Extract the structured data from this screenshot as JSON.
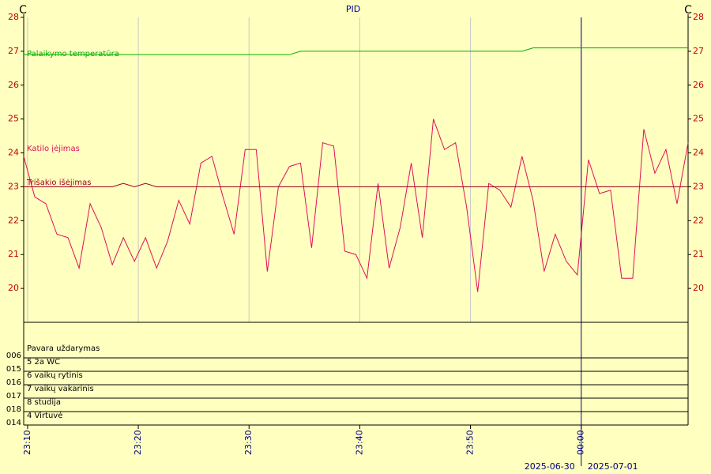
{
  "chart_data": {
    "type": "line",
    "title": "PID",
    "y_label_left": "C",
    "y_label_right": "C",
    "xlim": [
      9.65,
      69.65
    ],
    "xticks": [
      {
        "value": 10,
        "label": "23:10"
      },
      {
        "value": 20,
        "label": "23:20"
      },
      {
        "value": 30,
        "label": "23:30"
      },
      {
        "value": 40,
        "label": "23:40"
      },
      {
        "value": 50,
        "label": "23:50"
      },
      {
        "value": 60,
        "label": "00:00"
      }
    ],
    "ylim": [
      19,
      28
    ],
    "yticks": [
      20,
      21,
      22,
      23,
      24,
      25,
      26,
      27,
      28
    ],
    "grid": true,
    "x": [
      9.65,
      10.65,
      11.65,
      12.65,
      13.65,
      14.65,
      15.65,
      16.65,
      17.65,
      18.65,
      19.65,
      20.65,
      21.65,
      22.65,
      23.65,
      24.65,
      25.65,
      26.65,
      27.65,
      28.65,
      29.65,
      30.65,
      31.65,
      32.65,
      33.65,
      34.65,
      35.65,
      36.65,
      37.65,
      38.65,
      39.65,
      40.65,
      41.65,
      42.65,
      43.65,
      44.65,
      45.65,
      46.65,
      47.65,
      48.65,
      49.65,
      50.65,
      51.65,
      52.65,
      53.65,
      54.65,
      55.65,
      56.65,
      57.65,
      58.65,
      59.65,
      60.65,
      61.65,
      62.65,
      63.65,
      64.65,
      65.65,
      66.65,
      67.65,
      68.65,
      69.65
    ],
    "series": [
      {
        "name": "Palaikymo temperatūra",
        "color": "#00b000",
        "values": [
          26.9,
          26.9,
          26.9,
          26.9,
          26.9,
          26.9,
          26.9,
          26.9,
          26.9,
          26.9,
          26.9,
          26.9,
          26.9,
          26.9,
          26.9,
          26.9,
          26.9,
          26.9,
          26.9,
          26.9,
          26.9,
          26.9,
          26.9,
          26.9,
          26.9,
          27.0,
          27.0,
          27.0,
          27.0,
          27.0,
          27.0,
          27.0,
          27.0,
          27.0,
          27.0,
          27.0,
          27.0,
          27.0,
          27.0,
          27.0,
          27.0,
          27.0,
          27.0,
          27.0,
          27.0,
          27.0,
          27.1,
          27.1,
          27.1,
          27.1,
          27.1,
          27.1,
          27.1,
          27.1,
          27.1,
          27.1,
          27.1,
          27.1,
          27.1,
          27.1,
          27.1
        ]
      },
      {
        "name": "Katilo įėjimas",
        "color": "#e0105a",
        "values": [
          23.9,
          22.7,
          22.5,
          21.6,
          21.5,
          20.6,
          22.5,
          21.8,
          20.7,
          21.5,
          20.8,
          21.5,
          20.6,
          21.4,
          22.6,
          21.9,
          23.7,
          23.9,
          22.7,
          21.6,
          24.1,
          24.1,
          20.5,
          23.0,
          23.6,
          23.7,
          21.2,
          24.3,
          24.2,
          21.1,
          21.0,
          20.3,
          23.1,
          20.6,
          21.8,
          23.7,
          21.5,
          25.0,
          24.1,
          24.3,
          22.4,
          19.9,
          23.1,
          22.9,
          22.4,
          23.9,
          22.6,
          20.5,
          21.6,
          20.8,
          20.4,
          23.8,
          22.8,
          22.9,
          20.3,
          20.3,
          24.7,
          23.4,
          24.1,
          22.5,
          24.3
        ]
      },
      {
        "name": "Trišakio išėjimas",
        "color": "#a00020",
        "values": [
          23.0,
          23.0,
          23.0,
          23.0,
          23.0,
          23.0,
          23.0,
          23.0,
          23.0,
          23.1,
          23.0,
          23.1,
          23.0,
          23.0,
          23.0,
          23.0,
          23.0,
          23.0,
          23.0,
          23.0,
          23.0,
          23.0,
          23.0,
          23.0,
          23.0,
          23.0,
          23.0,
          23.0,
          23.0,
          23.0,
          23.0,
          23.0,
          23.0,
          23.0,
          23.0,
          23.0,
          23.0,
          23.0,
          23.0,
          23.0,
          23.0,
          23.0,
          23.0,
          23.0,
          23.0,
          23.0,
          23.0,
          23.0,
          23.0,
          23.0,
          23.0,
          23.0,
          23.0,
          23.0,
          23.0,
          23.0,
          23.0,
          23.0,
          23.0,
          23.0,
          23.0
        ]
      }
    ],
    "day_boundary": 60,
    "channels": {
      "header": "Pavara uždarymas",
      "codes": [
        "006",
        "015",
        "016",
        "017",
        "018",
        "014"
      ],
      "names": [
        "5 2a WC",
        "6 vaikų rytinis",
        "7 vaikų vakarinis",
        "8 studija",
        "4 Virtuvė"
      ]
    },
    "date_labels": [
      "2025-06-30",
      "2025-07-01"
    ]
  }
}
